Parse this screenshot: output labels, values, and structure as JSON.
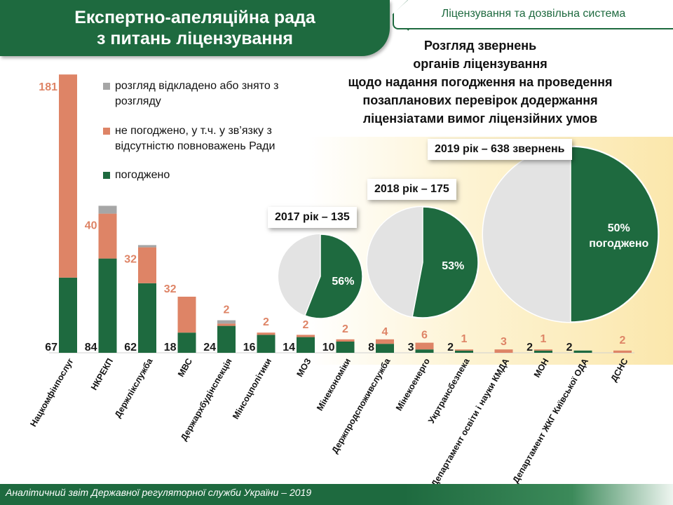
{
  "header": {
    "title_line1": "Експертно-апеляційна рада",
    "title_line2": "з питань ліцензування",
    "section_tag": "Ліцензування та дозвільна система"
  },
  "subtitle": {
    "line1": "Розгляд звернень",
    "line2": "органів ліцензування",
    "line3": "щодо надання погодження на проведення",
    "line4": "позапланових перевірок додержання",
    "line5": "ліцензіатами  вимог ліцензійних умов"
  },
  "legend": {
    "postponed": "розгляд відкладено або знято з розгляду",
    "rejected": "не погоджено, у т.ч. у зв’язку з відсутністю повноважень Ради",
    "approved": "погоджено"
  },
  "colors": {
    "approved": "#1e6a3f",
    "rejected": "#de8466",
    "postponed": "#a6a6a6",
    "pie_rest": "#e3e3e3"
  },
  "footer": {
    "text": "Аналітичний звіт Державної регуляторної служби України – 2019"
  },
  "chart_data": [
    {
      "type": "bar",
      "stacked": true,
      "categories": [
        "Нацкомфінпослуг",
        "НКРЕКП",
        "Держлікслужба",
        "МВС",
        "Держархбудінспекція",
        "Мінсоцполітики",
        "МОЗ",
        "Мінекономіки",
        "Держпродспоживслужба",
        "Мінекоенерго",
        "Укртрансбезпека",
        "Департамент освіти і науки КМДА",
        "МОН",
        "Департамент ЖКГ Київської ОДА",
        "ДСНС"
      ],
      "series": [
        {
          "name": "погоджено",
          "values": [
            67,
            84,
            62,
            18,
            24,
            16,
            14,
            10,
            8,
            3,
            2,
            0,
            2,
            2,
            0
          ]
        },
        {
          "name": "не погоджено, у т.ч. у зв’язку з відсутністю повноважень Ради",
          "values": [
            181,
            40,
            32,
            32,
            2,
            2,
            2,
            2,
            4,
            6,
            1,
            3,
            1,
            0,
            2
          ]
        },
        {
          "name": "розгляд відкладено або знято з розгляду",
          "values": [
            0,
            7,
            2,
            0,
            3,
            0,
            0,
            0,
            0,
            0,
            0,
            0,
            0,
            0,
            0
          ]
        }
      ],
      "data_labels": {
        "approved": [
          "67",
          "84",
          "62",
          "18",
          "24",
          "16",
          "14",
          "10",
          "8",
          "3",
          "2",
          "",
          "2",
          "2",
          ""
        ],
        "rejected": [
          "181",
          "40",
          "32",
          "32",
          "2",
          "2",
          "2",
          "2",
          "4",
          "6",
          "1",
          "3",
          "1",
          "",
          "2"
        ]
      },
      "grid": false
    },
    {
      "type": "pie",
      "title": "2017 рік – 135",
      "slices": [
        {
          "name": "погоджено",
          "value": 56
        },
        {
          "name": "",
          "value": 44
        }
      ],
      "label": "56%"
    },
    {
      "type": "pie",
      "title": "2018 рік – 175",
      "slices": [
        {
          "name": "погоджено",
          "value": 53
        },
        {
          "name": "",
          "value": 47
        }
      ],
      "label": "53%"
    },
    {
      "type": "pie",
      "title": "2019 рік – 638 звернень",
      "slices": [
        {
          "name": "погоджено",
          "value": 50
        },
        {
          "name": "",
          "value": 50
        }
      ],
      "label": "50%",
      "label_line2": "погоджено"
    }
  ]
}
